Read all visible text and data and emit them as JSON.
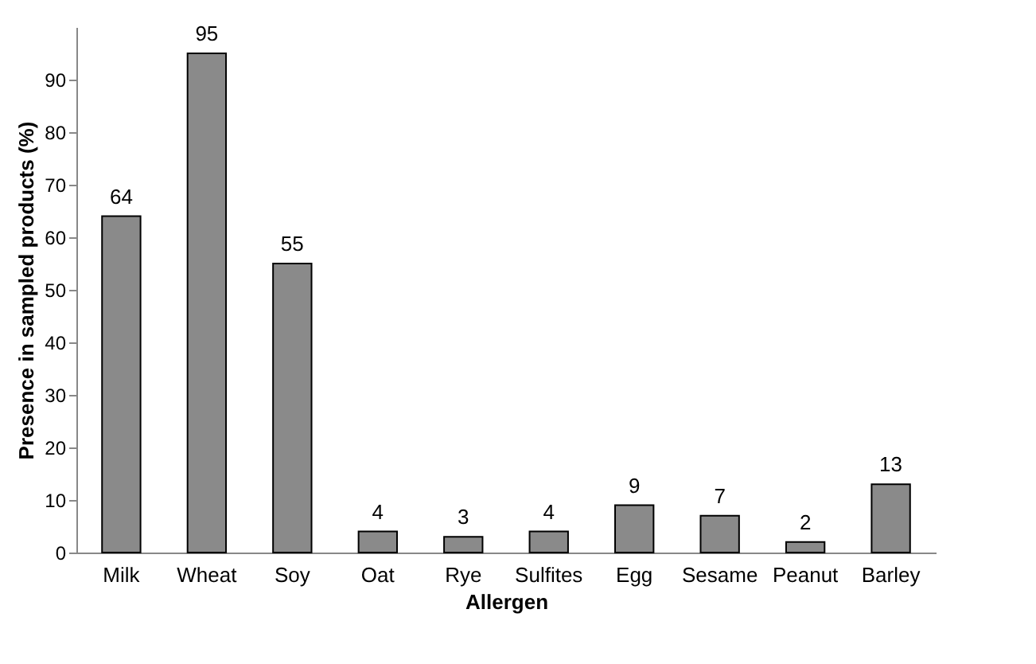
{
  "chart_data": {
    "type": "bar",
    "xlabel": "Allergen",
    "ylabel": "Presence in sampled products (%)",
    "categories": [
      "Milk",
      "Wheat",
      "Soy",
      "Oat",
      "Rye",
      "Sulfites",
      "Egg",
      "Sesame",
      "Peanut",
      "Barley"
    ],
    "values": [
      64,
      95,
      55,
      4,
      3,
      4,
      9,
      7,
      2,
      13
    ],
    "color": "#8a8a8a",
    "ylim": [
      0,
      100
    ],
    "yticks": [
      0,
      10,
      20,
      30,
      40,
      50,
      60,
      70,
      80,
      90
    ],
    "grid": false,
    "data_labels": true
  }
}
